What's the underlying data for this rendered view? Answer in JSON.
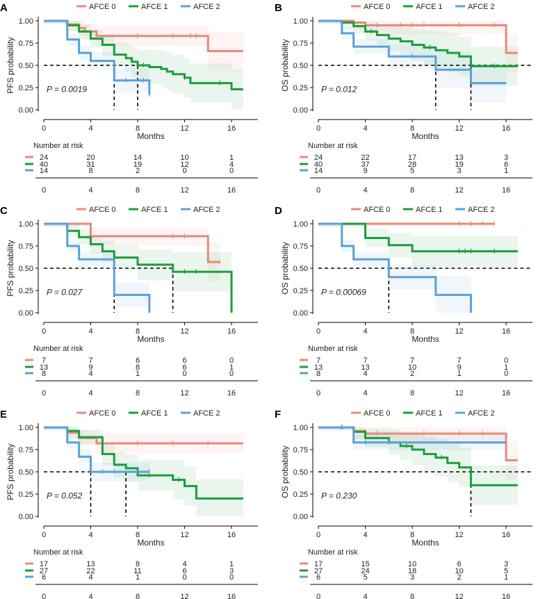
{
  "colors": {
    "g0": "#E8887A",
    "g1": "#1A9E3A",
    "g2": "#5AA0D8"
  },
  "chart_data": [
    {
      "type": "line",
      "panel_label": "A",
      "legend": [
        "AFCE 0",
        "AFCE 1",
        "AFCE 2"
      ],
      "ylabel": "PFS probability",
      "xlabel": "Months",
      "xticks": [
        "0",
        "4",
        "8",
        "12",
        "16"
      ],
      "yticks": [
        "0.00",
        "0.25",
        "0.50",
        "0.75",
        "1.00"
      ],
      "xlim": [
        0,
        17
      ],
      "ylim": [
        0,
        1
      ],
      "pvalue": "P = 0.0019",
      "risk_title": "Number at risk",
      "series": [
        {
          "name": "AFCE 0",
          "steps": [
            [
              0,
              1
            ],
            [
              2,
              0.96
            ],
            [
              3,
              0.92
            ],
            [
              3.5,
              0.88
            ],
            [
              4.5,
              0.83
            ],
            [
              14,
              0.66
            ],
            [
              17,
              0.66
            ]
          ],
          "censor": [
            8,
            11,
            12.5,
            13
          ],
          "risk": [
            "24",
            "20",
            "14",
            "10",
            "1"
          ]
        },
        {
          "name": "AFCE 1",
          "steps": [
            [
              0,
              1
            ],
            [
              2,
              0.95
            ],
            [
              3,
              0.88
            ],
            [
              4,
              0.8
            ],
            [
              5,
              0.73
            ],
            [
              6,
              0.62
            ],
            [
              7,
              0.58
            ],
            [
              7.5,
              0.54
            ],
            [
              8,
              0.5
            ],
            [
              9,
              0.48
            ],
            [
              10,
              0.46
            ],
            [
              10.5,
              0.43
            ],
            [
              11,
              0.4
            ],
            [
              12,
              0.36
            ],
            [
              12.5,
              0.3
            ],
            [
              16,
              0.23
            ],
            [
              17,
              0.23
            ]
          ],
          "censor": [
            8.5,
            12,
            15
          ],
          "risk": [
            "40",
            "31",
            "19",
            "12",
            "4"
          ]
        },
        {
          "name": "AFCE 2",
          "steps": [
            [
              0,
              1
            ],
            [
              2,
              0.79
            ],
            [
              3,
              0.64
            ],
            [
              4,
              0.55
            ],
            [
              6,
              0.33
            ],
            [
              9,
              0.17
            ]
          ],
          "censor": [
            7,
            8.5,
            9
          ],
          "risk": [
            "14",
            "8",
            "2",
            "0",
            "0"
          ]
        }
      ],
      "medians": [
        6,
        8
      ]
    },
    {
      "type": "line",
      "panel_label": "B",
      "legend": [
        "AFCE 0",
        "AFCE 1",
        "AFCE 2"
      ],
      "ylabel": "OS probability",
      "xlabel": "Months",
      "xticks": [
        "0",
        "4",
        "8",
        "12",
        "16"
      ],
      "yticks": [
        "0.00",
        "0.25",
        "0.50",
        "0.75",
        "1.00"
      ],
      "xlim": [
        0,
        17
      ],
      "ylim": [
        0,
        1
      ],
      "pvalue": "P = 0.012",
      "risk_title": "Number at risk",
      "series": [
        {
          "name": "AFCE 0",
          "steps": [
            [
              0,
              1
            ],
            [
              3,
              0.98
            ],
            [
              4,
              0.95
            ],
            [
              16,
              0.64
            ],
            [
              17,
              0.64
            ]
          ],
          "censor": [
            5,
            7,
            8,
            9,
            12,
            15
          ],
          "risk": [
            "24",
            "22",
            "17",
            "13",
            "3"
          ]
        },
        {
          "name": "AFCE 1",
          "steps": [
            [
              0,
              1
            ],
            [
              2,
              0.98
            ],
            [
              3,
              0.94
            ],
            [
              4,
              0.88
            ],
            [
              5,
              0.84
            ],
            [
              6,
              0.8
            ],
            [
              7,
              0.77
            ],
            [
              8,
              0.73
            ],
            [
              9,
              0.7
            ],
            [
              10,
              0.67
            ],
            [
              11,
              0.64
            ],
            [
              12,
              0.6
            ],
            [
              13,
              0.49
            ],
            [
              17,
              0.49
            ]
          ],
          "censor": [
            2,
            4.5,
            9.5,
            15
          ],
          "risk": [
            "40",
            "37",
            "28",
            "19",
            "6"
          ]
        },
        {
          "name": "AFCE 2",
          "steps": [
            [
              0,
              1
            ],
            [
              2,
              0.86
            ],
            [
              3,
              0.71
            ],
            [
              6,
              0.6
            ],
            [
              10,
              0.45
            ],
            [
              13,
              0.3
            ],
            [
              16,
              0.3
            ]
          ],
          "censor": [
            8
          ],
          "risk": [
            "14",
            "9",
            "5",
            "3",
            "1"
          ]
        }
      ],
      "medians": [
        10,
        13
      ]
    },
    {
      "type": "line",
      "panel_label": "C",
      "legend": [
        "AFCE 0",
        "AFCE 1",
        "AFCE 2"
      ],
      "ylabel": "PFS probability",
      "xlabel": "Months",
      "xticks": [
        "0",
        "4",
        "8",
        "12",
        "16"
      ],
      "yticks": [
        "0.00",
        "0.25",
        "0.50",
        "0.75",
        "1.00"
      ],
      "xlim": [
        0,
        17
      ],
      "ylim": [
        0,
        1
      ],
      "pvalue": "P = 0.027",
      "risk_title": "Number at risk",
      "series": [
        {
          "name": "AFCE 0",
          "steps": [
            [
              0,
              1
            ],
            [
              4,
              0.86
            ],
            [
              14,
              0.57
            ],
            [
              15,
              0.57
            ]
          ],
          "censor": [
            11,
            12,
            15
          ],
          "risk": [
            "7",
            "7",
            "6",
            "6",
            "0"
          ]
        },
        {
          "name": "AFCE 1",
          "steps": [
            [
              0,
              1
            ],
            [
              2,
              0.92
            ],
            [
              3,
              0.85
            ],
            [
              4,
              0.77
            ],
            [
              5,
              0.69
            ],
            [
              6,
              0.62
            ],
            [
              8,
              0.54
            ],
            [
              11,
              0.46
            ],
            [
              16,
              0
            ],
            [
              16,
              0
            ]
          ],
          "censor": [
            12,
            13
          ],
          "risk": [
            "13",
            "9",
            "8",
            "6",
            "1"
          ]
        },
        {
          "name": "AFCE 2",
          "steps": [
            [
              0,
              1
            ],
            [
              2,
              0.75
            ],
            [
              3,
              0.6
            ],
            [
              6,
              0.2
            ],
            [
              9,
              0
            ]
          ],
          "censor": [],
          "risk": [
            "8",
            "4",
            "1",
            "0",
            "0"
          ]
        }
      ],
      "medians": [
        6,
        11
      ]
    },
    {
      "type": "line",
      "panel_label": "D",
      "legend": [
        "AFCE 0",
        "AFCE 1",
        "AFCE 2"
      ],
      "ylabel": "OS probability",
      "xlabel": "Months",
      "xticks": [
        "0",
        "4",
        "8",
        "12",
        "16"
      ],
      "yticks": [
        "0.00",
        "0.25",
        "0.50",
        "0.75",
        "1.00"
      ],
      "xlim": [
        0,
        17
      ],
      "ylim": [
        0,
        1
      ],
      "pvalue": "P = 0.00069",
      "risk_title": "Number at risk",
      "series": [
        {
          "name": "AFCE 0",
          "steps": [
            [
              0,
              1
            ],
            [
              15,
              1
            ]
          ],
          "censor": [
            12,
            13,
            14,
            15
          ],
          "risk": [
            "7",
            "7",
            "7",
            "7",
            "0"
          ]
        },
        {
          "name": "AFCE 1",
          "steps": [
            [
              0,
              1
            ],
            [
              4,
              0.84
            ],
            [
              6,
              0.76
            ],
            [
              8,
              0.69
            ],
            [
              17,
              0.69
            ]
          ],
          "censor": [
            12,
            12.5,
            13,
            15
          ],
          "risk": [
            "13",
            "13",
            "10",
            "9",
            "1"
          ]
        },
        {
          "name": "AFCE 2",
          "steps": [
            [
              0,
              1
            ],
            [
              2,
              0.75
            ],
            [
              3,
              0.6
            ],
            [
              6,
              0.4
            ],
            [
              10,
              0.2
            ],
            [
              13,
              0
            ]
          ],
          "censor": [],
          "risk": [
            "8",
            "4",
            "2",
            "1",
            "0"
          ]
        }
      ],
      "medians": [
        6
      ]
    },
    {
      "type": "line",
      "panel_label": "E",
      "legend": [
        "AFCE 0",
        "AFCE 1",
        "AFCE 2"
      ],
      "ylabel": "PFS probability",
      "xlabel": "Months",
      "xticks": [
        "0",
        "4",
        "8",
        "12",
        "16"
      ],
      "yticks": [
        "0.00",
        "0.25",
        "0.50",
        "0.75",
        "1.00"
      ],
      "xlim": [
        0,
        17
      ],
      "ylim": [
        0,
        1
      ],
      "pvalue": "P = 0.052",
      "risk_title": "Number at risk",
      "series": [
        {
          "name": "AFCE 0",
          "steps": [
            [
              0,
              1
            ],
            [
              2,
              0.94
            ],
            [
              3,
              0.88
            ],
            [
              4.5,
              0.82
            ],
            [
              17,
              0.82
            ]
          ],
          "censor": [
            8,
            11,
            14
          ],
          "risk": [
            "17",
            "13",
            "8",
            "4",
            "1"
          ]
        },
        {
          "name": "AFCE 1",
          "steps": [
            [
              0,
              1
            ],
            [
              2,
              0.96
            ],
            [
              3,
              0.89
            ],
            [
              5,
              0.7
            ],
            [
              6,
              0.58
            ],
            [
              7,
              0.54
            ],
            [
              8,
              0.46
            ],
            [
              11,
              0.41
            ],
            [
              12,
              0.34
            ],
            [
              13,
              0.2
            ],
            [
              17,
              0.2
            ]
          ],
          "censor": [
            9,
            11.5
          ],
          "risk": [
            "27",
            "22",
            "11",
            "6",
            "3"
          ]
        },
        {
          "name": "AFCE 2",
          "steps": [
            [
              0,
              1
            ],
            [
              2,
              0.83
            ],
            [
              3,
              0.67
            ],
            [
              4,
              0.5
            ],
            [
              9,
              0.5
            ]
          ],
          "censor": [
            5,
            6,
            9
          ],
          "risk": [
            "6",
            "4",
            "1",
            "0",
            "0"
          ]
        }
      ],
      "medians": [
        4,
        7
      ]
    },
    {
      "type": "line",
      "panel_label": "F",
      "legend": [
        "AFCE 0",
        "AFCE 1",
        "AFCE 2"
      ],
      "ylabel": "OS probability",
      "xlabel": "Months",
      "xticks": [
        "0",
        "4",
        "8",
        "12",
        "16"
      ],
      "yticks": [
        "0.00",
        "0.25",
        "0.50",
        "0.75",
        "1.00"
      ],
      "xlim": [
        0,
        17
      ],
      "ylim": [
        0,
        1
      ],
      "pvalue": "P = 0.230",
      "risk_title": "Number at risk",
      "series": [
        {
          "name": "AFCE 0",
          "steps": [
            [
              0,
              1
            ],
            [
              3,
              0.96
            ],
            [
              4,
              0.93
            ],
            [
              16,
              0.63
            ],
            [
              17,
              0.63
            ]
          ],
          "censor": [
            5,
            9,
            12,
            14
          ],
          "risk": [
            "17",
            "15",
            "10",
            "6",
            "3"
          ]
        },
        {
          "name": "AFCE 1",
          "steps": [
            [
              0,
              1
            ],
            [
              3,
              0.95
            ],
            [
              4,
              0.88
            ],
            [
              6,
              0.83
            ],
            [
              7,
              0.79
            ],
            [
              8,
              0.75
            ],
            [
              9,
              0.7
            ],
            [
              10,
              0.66
            ],
            [
              11,
              0.6
            ],
            [
              12,
              0.55
            ],
            [
              13,
              0.35
            ],
            [
              17,
              0.35
            ]
          ],
          "censor": [
            2,
            7.5,
            10.5
          ],
          "risk": [
            "27",
            "24",
            "18",
            "10",
            "5"
          ]
        },
        {
          "name": "AFCE 2",
          "steps": [
            [
              0,
              1
            ],
            [
              3,
              0.83
            ],
            [
              16,
              0.83
            ]
          ],
          "censor": [
            4,
            6
          ],
          "risk": [
            "6",
            "5",
            "3",
            "2",
            "1"
          ]
        }
      ],
      "medians": [
        13
      ]
    }
  ]
}
